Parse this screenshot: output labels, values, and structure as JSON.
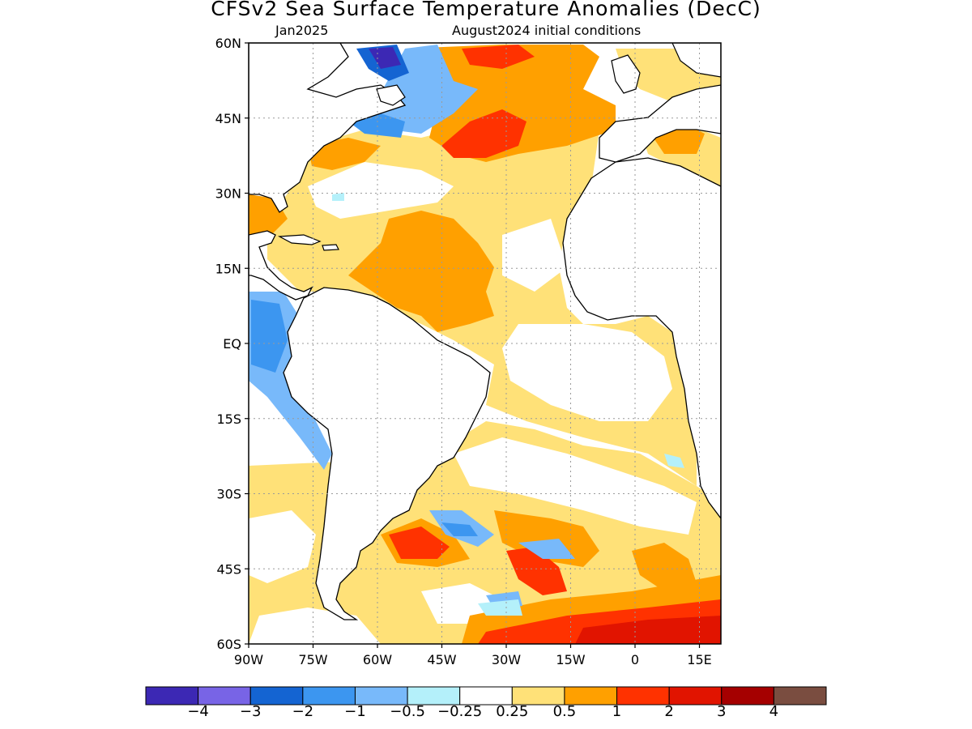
{
  "title": "CFSv2 Sea Surface Temperature Anomalies (DecC)",
  "subtitle_left": "Jan2025",
  "subtitle_right": "August2024 initial conditions",
  "map": {
    "lon_range": [
      -90,
      20
    ],
    "lat_range": [
      -60,
      60
    ],
    "lat_ticks": [
      {
        "lat": 60,
        "label": "60N"
      },
      {
        "lat": 45,
        "label": "45N"
      },
      {
        "lat": 30,
        "label": "30N"
      },
      {
        "lat": 15,
        "label": "15N"
      },
      {
        "lat": 0,
        "label": "EQ"
      },
      {
        "lat": -15,
        "label": "15S"
      },
      {
        "lat": -30,
        "label": "30S"
      },
      {
        "lat": -45,
        "label": "45S"
      },
      {
        "lat": -60,
        "label": "60S"
      }
    ],
    "lon_ticks": [
      {
        "lon": -90,
        "label": "90W"
      },
      {
        "lon": -75,
        "label": "75W"
      },
      {
        "lon": -60,
        "label": "60W"
      },
      {
        "lon": -45,
        "label": "45W"
      },
      {
        "lon": -30,
        "label": "30W"
      },
      {
        "lon": -15,
        "label": "15W"
      },
      {
        "lon": 0,
        "label": "0"
      },
      {
        "lon": 15,
        "label": "15E"
      }
    ],
    "grid": true
  },
  "colorbar": {
    "colors": [
      "#3c28b4",
      "#7864e6",
      "#1464d2",
      "#3c96f0",
      "#78b9fa",
      "#b4f0fa",
      "#ffffff",
      "#ffe178",
      "#ffa000",
      "#ff3200",
      "#e11400",
      "#a50000",
      "#7a4d40"
    ],
    "labels": [
      "−4",
      "−3",
      "−2",
      "−1",
      "−0.5",
      "−0.25",
      "0.25",
      "0.5",
      "1",
      "2",
      "3",
      "4"
    ]
  },
  "colors": {
    "land": "#ffffff",
    "coast": "#000000",
    "grid": "#9a9a9a"
  }
}
